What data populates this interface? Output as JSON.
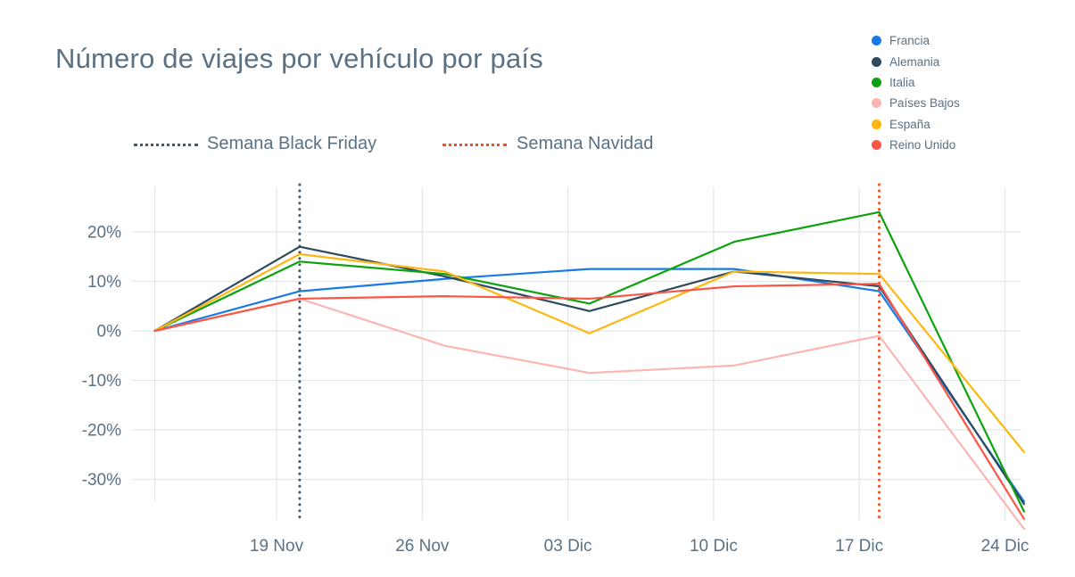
{
  "title": "Número de viajes por vehículo por país",
  "colors": {
    "text": "#5a7184",
    "grid": "#e2e7ec"
  },
  "annotations": [
    {
      "label": "Semana Black Friday",
      "color": "#42586c",
      "x_index": 1
    },
    {
      "label": "Semana Navidad",
      "color": "#f94e1b",
      "x_index": 5
    }
  ],
  "chart_data": {
    "type": "line",
    "title": "Número de viajes por vehículo por país",
    "ylabel": "",
    "xlabel": "",
    "grid": true,
    "legend_position": "top-right",
    "x_tick_labels": [
      "19 Nov",
      "26 Nov",
      "03 Dic",
      "10 Dic",
      "17 Dic",
      "24 Dic"
    ],
    "y_tick_labels": [
      "20%",
      "10%",
      "0%",
      "-10%",
      "-20%",
      "-30%"
    ],
    "y_ticks_percent": [
      20,
      10,
      0,
      -10,
      -20,
      -30
    ],
    "ylim_percent": [
      -40,
      30
    ],
    "points_per_series": 7,
    "series": [
      {
        "name": "Francia",
        "color": "#1879e7",
        "values": [
          0,
          8,
          10.5,
          12.5,
          12.5,
          8,
          -34.5
        ]
      },
      {
        "name": "Alemania",
        "color": "#2e4a5e",
        "values": [
          0,
          17,
          11,
          4,
          12,
          9,
          -35
        ]
      },
      {
        "name": "Italia",
        "color": "#0da20d",
        "values": [
          0,
          14,
          11.5,
          5.5,
          18,
          24,
          -36.5
        ]
      },
      {
        "name": "Países Bajos",
        "color": "#fbb6b2",
        "values": [
          0,
          6.5,
          -3,
          -8.5,
          -7,
          -1,
          -40
        ]
      },
      {
        "name": "España",
        "color": "#fdb713",
        "values": [
          0,
          15.5,
          12,
          -0.5,
          12,
          11.5,
          -24.5
        ]
      },
      {
        "name": "Reino Unido",
        "color": "#fb5546",
        "values": [
          0,
          6.5,
          7,
          6.5,
          9,
          9.5,
          -38
        ]
      }
    ]
  }
}
